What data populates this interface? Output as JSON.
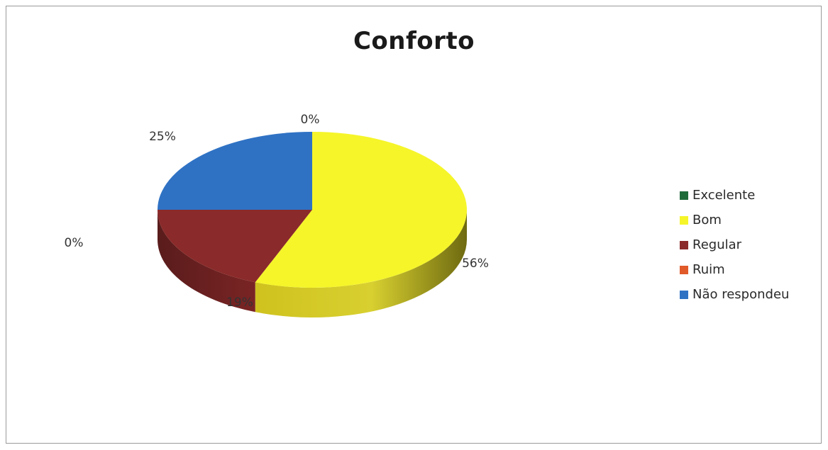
{
  "chart_data": {
    "type": "pie",
    "title": "Conforto",
    "categories": [
      "Excelente",
      "Bom",
      "Regular",
      "Ruim",
      "Não respondeu"
    ],
    "values": [
      0,
      56,
      19,
      0,
      25
    ],
    "data_labels": [
      "0%",
      "56%",
      "19%",
      "0%",
      "25%"
    ],
    "colors": [
      "#1e6b3a",
      "#f5f52a",
      "#8b2a2a",
      "#e05a2a",
      "#2f72c4"
    ],
    "legend_position": "right",
    "style": "3d"
  }
}
